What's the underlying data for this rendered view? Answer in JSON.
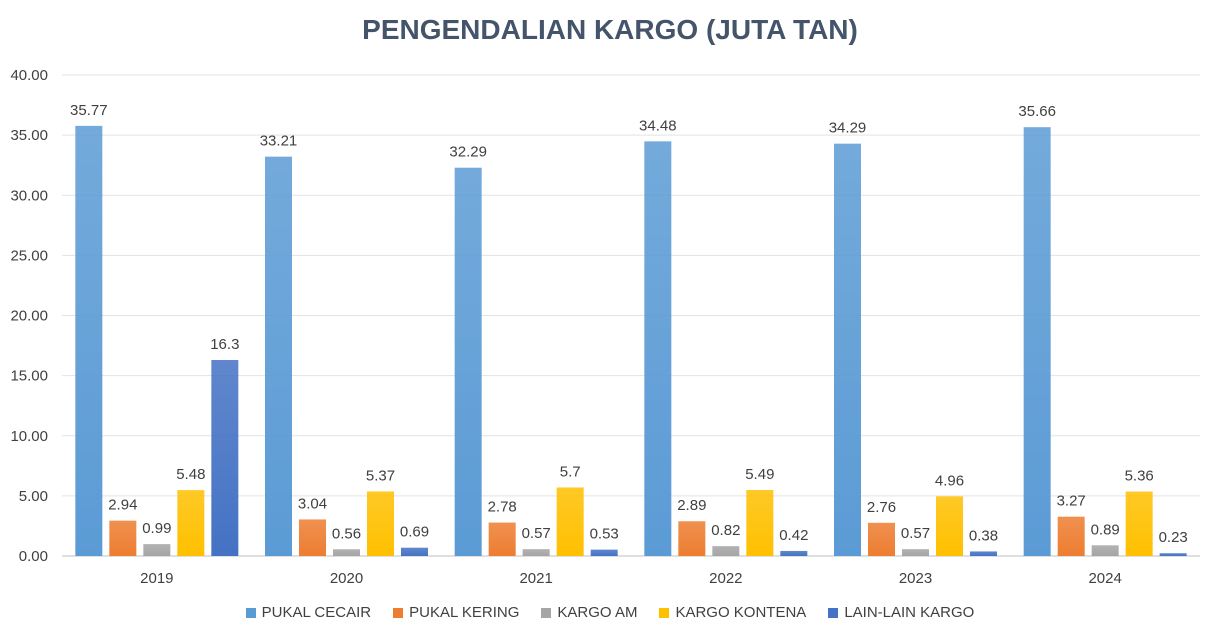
{
  "chart_data": {
    "type": "bar",
    "title": "PENGENDALIAN KARGO (JUTA TAN)",
    "xlabel": "",
    "ylabel": "",
    "ylim": [
      0,
      40
    ],
    "yticks": [
      "0.00",
      "5.00",
      "10.00",
      "15.00",
      "20.00",
      "25.00",
      "30.00",
      "35.00",
      "40.00"
    ],
    "grid": true,
    "legend_position": "bottom",
    "categories": [
      "2019",
      "2020",
      "2021",
      "2022",
      "2023",
      "2024"
    ],
    "series": [
      {
        "name": "PUKAL CECAIR",
        "color": "#5b9bd5",
        "values": [
          35.77,
          33.21,
          32.29,
          34.48,
          34.29,
          35.66
        ],
        "labels": [
          "35.77",
          "33.21",
          "32.29",
          "34.48",
          "34.29",
          "35.66"
        ]
      },
      {
        "name": "PUKAL KERING",
        "color": "#ed7d31",
        "values": [
          2.94,
          3.04,
          2.78,
          2.89,
          2.76,
          3.27
        ],
        "labels": [
          "2.94",
          "3.04",
          "2.78",
          "2.89",
          "2.76",
          "3.27"
        ]
      },
      {
        "name": "KARGO AM",
        "color": "#a5a5a5",
        "values": [
          0.99,
          0.56,
          0.57,
          0.82,
          0.57,
          0.89
        ],
        "labels": [
          "0.99",
          "0.56",
          "0.57",
          "0.82",
          "0.57",
          "0.89"
        ]
      },
      {
        "name": "KARGO KONTENA",
        "color": "#ffc000",
        "values": [
          5.48,
          5.37,
          5.7,
          5.49,
          4.96,
          5.36
        ],
        "labels": [
          "5.48",
          "5.37",
          "5.7",
          "5.49",
          "4.96",
          "5.36"
        ]
      },
      {
        "name": "LAIN-LAIN KARGO",
        "color": "#4472c4",
        "values": [
          16.3,
          0.69,
          0.53,
          0.42,
          0.38,
          0.23
        ],
        "labels": [
          "16.3",
          "0.69",
          "0.53",
          "0.42",
          "0.38",
          "0.23"
        ]
      }
    ]
  }
}
